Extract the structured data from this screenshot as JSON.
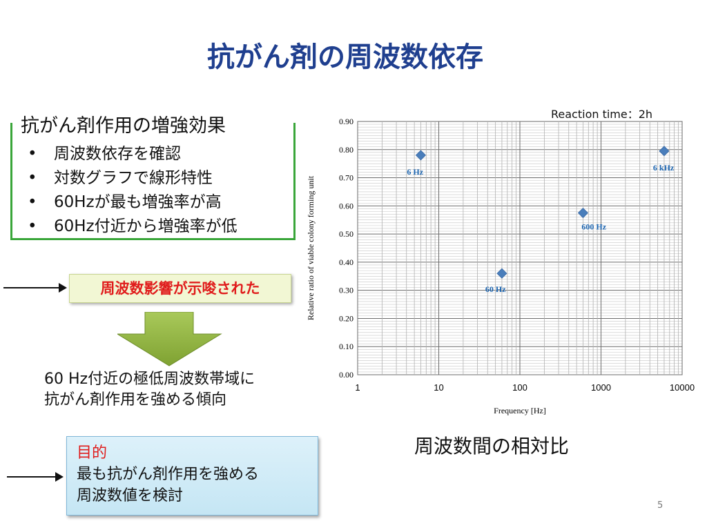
{
  "title": "抗がん剤の周波数依存",
  "box1": {
    "heading": "抗がん剤作用の増強効果",
    "items": [
      "周波数依存を確認",
      "対数グラフで線形特性",
      "60Hzが最も増強率が高",
      "60Hz付近から増強率が低"
    ]
  },
  "callout": "周波数影響が示唆された",
  "conclusion": [
    "60 Hz付近の極低周波数帯域に",
    "抗がん剤作用を強める傾向"
  ],
  "purpose": {
    "title": "目的",
    "lines": [
      "最も抗がん剤作用を強める",
      "周波数値を検討"
    ]
  },
  "chart_caption": "周波数間の相対比",
  "reaction_time": "Reaction time：2h",
  "page_number": "5",
  "colors": {
    "title": "#1f3f8f",
    "marker": "#4a7ebb",
    "point_label": "#1b64b0",
    "box_border": "#3aa63a",
    "callout_text": "#e01b1b"
  },
  "chart_data": {
    "type": "scatter",
    "x_scale": "log",
    "xlim": [
      1,
      10000
    ],
    "ylim": [
      0,
      0.9
    ],
    "xlabel": "Frequency [Hz]",
    "ylabel": "Relative ratio of viable colony forming unit",
    "x_ticks": [
      "1",
      "10",
      "100",
      "1000",
      "10000"
    ],
    "y_ticks": [
      "0.00",
      "0.10",
      "0.20",
      "0.30",
      "0.40",
      "0.50",
      "0.60",
      "0.70",
      "0.80",
      "0.90"
    ],
    "grid": true,
    "points": [
      {
        "x": 6,
        "y": 0.78,
        "label": "6 Hz"
      },
      {
        "x": 60,
        "y": 0.36,
        "label": "60 Hz"
      },
      {
        "x": 600,
        "y": 0.575,
        "label": "600 Hz"
      },
      {
        "x": 6000,
        "y": 0.795,
        "label": "6 kHz"
      }
    ]
  }
}
